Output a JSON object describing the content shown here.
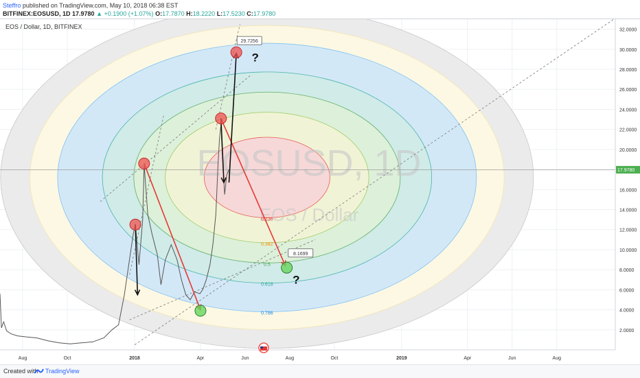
{
  "header": {
    "publisher": "Steffro",
    "published_text": "published on TradingView.com, May 10, 2018 06:38 EST",
    "symbol": "BITFINEX:EOSUSD, 1D",
    "price": "17.9780",
    "change": "▲ +0.1900 (+1.07%)",
    "open_label": "O:",
    "open": "17.7870",
    "high_label": "H:",
    "high": "18.2220",
    "low_label": "L:",
    "low": "17.5230",
    "close_label": "C:",
    "close": "17.9780"
  },
  "footer": {
    "created_with": "Created with",
    "brand": "TradingView"
  },
  "chart_data": {
    "type": "line",
    "title": "EOS / Dollar, 1D, BITFINEX",
    "watermark_symbol": "EOSUSD, 1D",
    "watermark_name": "EOS / Dollar",
    "current_price_label": "17.9780",
    "current_price": 17.978,
    "ylim": [
      0,
      33
    ],
    "yticks": [
      2,
      4,
      6,
      8,
      10,
      12,
      14,
      16,
      18,
      20,
      22,
      24,
      26,
      28,
      30,
      32
    ],
    "ytick_labels": [
      "2.0000",
      "4.0000",
      "6.0000",
      "8.0000",
      "10.0000",
      "12.0000",
      "14.0000",
      "16.0000",
      "18.0000",
      "20.0000",
      "22.0000",
      "24.0000",
      "26.0000",
      "28.0000",
      "30.0000",
      "32.0000"
    ],
    "xlim": [
      "2017-07-01",
      "2019-10-20"
    ],
    "xticks": [
      {
        "date": "2017-08-01",
        "label": "Aug"
      },
      {
        "date": "2017-10-01",
        "label": "Oct"
      },
      {
        "date": "2018-01-01",
        "label": "2018"
      },
      {
        "date": "2018-04-01",
        "label": "Apr"
      },
      {
        "date": "2018-06-01",
        "label": "Jun"
      },
      {
        "date": "2018-08-01",
        "label": "Aug"
      },
      {
        "date": "2018-10-01",
        "label": "Oct"
      },
      {
        "date": "2019-01-01",
        "label": "2019"
      },
      {
        "date": "2019-04-01",
        "label": "Apr"
      },
      {
        "date": "2019-06-01",
        "label": "Jun"
      },
      {
        "date": "2019-08-01",
        "label": "Aug"
      }
    ],
    "price_series": [
      [
        "2017-07-01",
        5.6
      ],
      [
        "2017-07-03",
        2.2
      ],
      [
        "2017-07-06",
        2.8
      ],
      [
        "2017-07-10",
        1.9
      ],
      [
        "2017-07-16",
        1.6
      ],
      [
        "2017-07-25",
        1.4
      ],
      [
        "2017-08-05",
        1.3
      ],
      [
        "2017-08-20",
        1.2
      ],
      [
        "2017-09-05",
        0.9
      ],
      [
        "2017-09-20",
        0.7
      ],
      [
        "2017-10-05",
        0.6
      ],
      [
        "2017-10-20",
        0.7
      ],
      [
        "2017-11-05",
        0.8
      ],
      [
        "2017-11-20",
        1.2
      ],
      [
        "2017-12-01",
        2.0
      ],
      [
        "2017-12-10",
        2.5
      ],
      [
        "2017-12-18",
        5.5
      ],
      [
        "2017-12-24",
        8.5
      ],
      [
        "2017-12-30",
        11.5
      ],
      [
        "2018-01-02",
        12.6
      ],
      [
        "2018-01-07",
        8.5
      ],
      [
        "2018-01-12",
        13.0
      ],
      [
        "2018-01-14",
        18.5
      ],
      [
        "2018-01-19",
        13.5
      ],
      [
        "2018-01-25",
        11.5
      ],
      [
        "2018-02-01",
        9.5
      ],
      [
        "2018-02-06",
        6.5
      ],
      [
        "2018-02-12",
        9.0
      ],
      [
        "2018-02-20",
        10.5
      ],
      [
        "2018-02-28",
        9.0
      ],
      [
        "2018-03-06",
        7.0
      ],
      [
        "2018-03-12",
        5.5
      ],
      [
        "2018-03-18",
        5.0
      ],
      [
        "2018-03-24",
        5.8
      ],
      [
        "2018-03-31",
        5.6
      ],
      [
        "2018-04-04",
        6.0
      ],
      [
        "2018-04-09",
        7.0
      ],
      [
        "2018-04-14",
        8.5
      ],
      [
        "2018-04-18",
        10.5
      ],
      [
        "2018-04-22",
        13.5
      ],
      [
        "2018-04-25",
        18.5
      ],
      [
        "2018-04-27",
        21.0
      ],
      [
        "2018-04-29",
        22.5
      ],
      [
        "2018-05-01",
        19.5
      ],
      [
        "2018-05-04",
        15.5
      ],
      [
        "2018-05-07",
        17.5
      ],
      [
        "2018-05-10",
        17.978
      ]
    ],
    "fib_levels": [
      {
        "label": "0.236",
        "value": 0.236,
        "color": "#e53935"
      },
      {
        "label": "0.382",
        "value": 0.382,
        "color": "#fb8c00"
      },
      {
        "label": "0.5",
        "value": 0.5,
        "color": "#43a047"
      },
      {
        "label": "0.618",
        "value": 0.618,
        "color": "#26a69a"
      },
      {
        "label": "0.786",
        "value": 0.786,
        "color": "#1e88e5"
      },
      {
        "label": "1",
        "value": 1.0,
        "color": "#9e9e9e"
      }
    ],
    "fib_center": {
      "date": "2018-07-01",
      "price": 17.2
    },
    "ring_colors": [
      "#ebebeb",
      "#fdf8e3",
      "#d3e8f6",
      "#d0ebe8",
      "#ddf0da",
      "#f1f3d6",
      "#f6d8d8"
    ],
    "circle_markers": [
      {
        "date": "2018-01-02",
        "price": 12.5,
        "color": "red"
      },
      {
        "date": "2018-01-14",
        "price": 18.6,
        "color": "red"
      },
      {
        "date": "2018-04-29",
        "price": 23.1,
        "color": "red"
      },
      {
        "date": "2018-05-20",
        "price": 29.7,
        "color": "red"
      },
      {
        "date": "2018-04-01",
        "price": 3.9,
        "color": "green"
      },
      {
        "date": "2018-07-28",
        "price": 8.2,
        "color": "green"
      }
    ],
    "price_labels": [
      {
        "date": "2018-05-21",
        "price": 30.8,
        "text": "29.7256"
      },
      {
        "date": "2018-07-30",
        "price": 9.6,
        "text": "8.1699"
      }
    ],
    "question_marks": [
      {
        "date": "2018-06-10",
        "price": 28.8,
        "text": "?"
      },
      {
        "date": "2018-08-05",
        "price": 6.6,
        "text": "?"
      }
    ],
    "red_arrows": [
      [
        [
          "2018-01-14",
          18.6
        ],
        [
          "2018-04-01",
          4.0
        ]
      ],
      [
        [
          "2018-04-29",
          23.1
        ],
        [
          "2018-07-26",
          8.4
        ]
      ]
    ],
    "black_arrows": [
      [
        [
          "2018-01-02",
          12.5
        ],
        [
          "2018-01-05",
          5.5
        ]
      ],
      [
        [
          "2018-04-29",
          23.1
        ],
        [
          "2018-05-03",
          16.7
        ]
      ],
      [
        [
          "2018-05-10",
          16.7
        ],
        [
          "2018-05-20",
          29.6
        ]
      ]
    ],
    "dashed_lines": [
      [
        [
          "2017-12-25",
          7.5
        ],
        [
          "2018-02-10",
          23.5
        ]
      ],
      [
        [
          "2018-04-22",
          22.0
        ],
        [
          "2018-05-25",
          32.5
        ]
      ],
      [
        [
          "2017-11-15",
          14.8
        ],
        [
          "2018-06-10",
          27.5
        ]
      ],
      [
        [
          "2017-12-25",
          3.0
        ],
        [
          "2018-09-05",
          11.0
        ]
      ],
      [
        [
          "2018-01-01",
          0.5
        ],
        [
          "2019-10-18",
          33.0
        ]
      ]
    ]
  }
}
